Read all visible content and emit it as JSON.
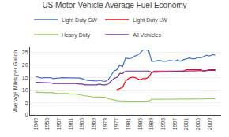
{
  "chart_data": {
    "type": "line",
    "title": "US Motor Vehicle Average Fuel Economy",
    "ylabel": "Average Miles per Gallon",
    "x": [
      1949,
      1950,
      1951,
      1952,
      1953,
      1954,
      1955,
      1956,
      1957,
      1958,
      1959,
      1960,
      1961,
      1962,
      1963,
      1964,
      1965,
      1966,
      1967,
      1968,
      1969,
      1970,
      1971,
      1972,
      1973,
      1974,
      1975,
      1976,
      1977,
      1978,
      1979,
      1980,
      1981,
      1982,
      1983,
      1984,
      1985,
      1986,
      1987,
      1988,
      1989,
      1990,
      1991,
      1992,
      1993,
      1994,
      1995,
      1996,
      1997,
      1998,
      1999,
      2000,
      2001,
      2002,
      2003,
      2004,
      2005,
      2006,
      2007,
      2008,
      2009,
      2010,
      2011
    ],
    "series": [
      {
        "name": "Light Duty SW",
        "color": "#4472C4",
        "values": [
          15.3,
          15.0,
          14.7,
          14.9,
          15.0,
          14.9,
          14.5,
          14.5,
          14.7,
          14.9,
          14.9,
          14.9,
          14.9,
          14.9,
          14.7,
          14.7,
          14.5,
          14.0,
          13.8,
          13.6,
          13.6,
          13.5,
          13.8,
          13.5,
          13.4,
          14.0,
          15.8,
          17.5,
          18.0,
          19.9,
          19.3,
          22.6,
          22.5,
          22.6,
          23.4,
          23.8,
          24.6,
          25.9,
          25.9,
          25.7,
          21.4,
          21.4,
          21.7,
          21.7,
          21.4,
          21.4,
          21.7,
          21.7,
          21.5,
          21.9,
          21.4,
          22.0,
          22.3,
          22.7,
          22.4,
          22.4,
          22.9,
          22.8,
          23.3,
          23.8,
          23.5,
          24.0,
          23.9
        ]
      },
      {
        "name": "Light Duty LW",
        "color": "#FF0000",
        "values": [
          null,
          null,
          null,
          null,
          null,
          null,
          null,
          null,
          null,
          null,
          null,
          null,
          null,
          null,
          null,
          null,
          null,
          null,
          null,
          null,
          null,
          null,
          null,
          null,
          null,
          null,
          null,
          null,
          10.0,
          10.5,
          11.0,
          13.5,
          14.5,
          15.0,
          15.0,
          14.5,
          14.0,
          14.5,
          14.5,
          15.0,
          17.0,
          17.5,
          17.5,
          17.3,
          17.5,
          17.5,
          17.5,
          17.5,
          17.5,
          17.5,
          17.5,
          17.5,
          18.0,
          18.0,
          18.0,
          18.0,
          18.0,
          18.0,
          17.5,
          17.8,
          18.0,
          18.0,
          18.0
        ]
      },
      {
        "name": "Heavy Duty",
        "color": "#92D050",
        "values": [
          9.0,
          9.0,
          8.8,
          8.8,
          9.0,
          8.8,
          8.8,
          8.5,
          8.5,
          8.5,
          8.7,
          8.5,
          8.3,
          8.3,
          8.3,
          8.0,
          7.8,
          7.5,
          7.5,
          7.3,
          7.2,
          7.2,
          7.2,
          7.0,
          7.0,
          6.5,
          6.2,
          5.8,
          5.7,
          5.6,
          5.5,
          5.5,
          5.5,
          5.5,
          5.5,
          5.5,
          5.5,
          5.5,
          5.5,
          5.5,
          6.2,
          6.2,
          6.2,
          6.2,
          6.2,
          6.2,
          6.2,
          6.2,
          6.2,
          6.2,
          6.2,
          6.2,
          6.3,
          6.3,
          6.3,
          6.3,
          6.3,
          6.3,
          6.4,
          6.5,
          6.5,
          6.5,
          6.5
        ]
      },
      {
        "name": "All Vehicles",
        "color": "#7030A0",
        "values": [
          13.0,
          13.0,
          12.8,
          12.8,
          12.8,
          12.8,
          12.5,
          12.5,
          12.5,
          12.5,
          12.7,
          12.6,
          12.5,
          12.5,
          12.5,
          12.3,
          12.3,
          12.0,
          12.0,
          12.0,
          12.0,
          12.0,
          12.3,
          12.0,
          12.0,
          12.3,
          13.5,
          14.5,
          15.0,
          16.5,
          16.5,
          17.5,
          17.5,
          17.5,
          17.5,
          17.5,
          17.5,
          17.5,
          17.5,
          17.5,
          17.0,
          17.0,
          17.0,
          17.0,
          17.0,
          17.0,
          17.2,
          17.3,
          17.4,
          17.5,
          17.5,
          17.5,
          17.5,
          17.5,
          17.5,
          17.5,
          17.5,
          17.5,
          17.5,
          17.7,
          17.8,
          17.8,
          17.8
        ]
      }
    ],
    "xlim": [
      1947,
      2013
    ],
    "xticks": [
      1949,
      1953,
      1957,
      1961,
      1965,
      1969,
      1973,
      1977,
      1981,
      1985,
      1989,
      1993,
      1997,
      2001,
      2005,
      2009
    ],
    "ylim": [
      0,
      27
    ],
    "yticks": [
      0,
      5,
      10,
      15,
      20,
      25
    ],
    "grid": true,
    "legend": "top"
  }
}
